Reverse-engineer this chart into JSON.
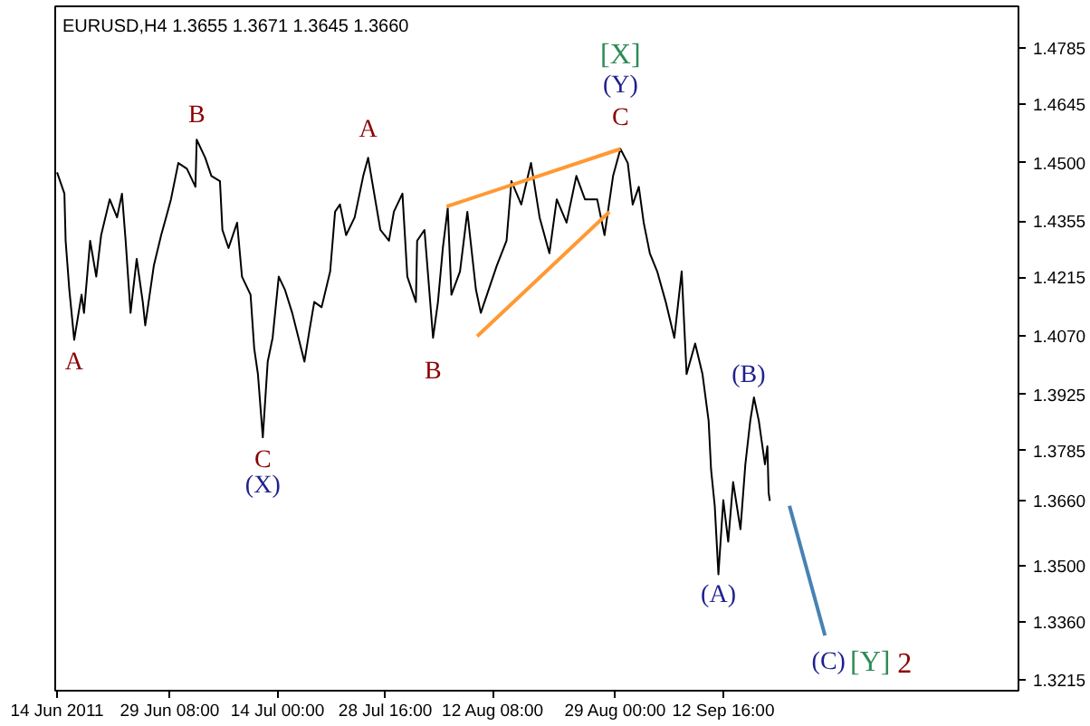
{
  "chart_data": {
    "type": "line",
    "title": "EURUSD,H4 1.3655 1.3671 1.3645 1.3660",
    "xlim": [
      "2011-06-13T18:00",
      "2011-10-22T20:00"
    ],
    "ylim": [
      1.3189,
      1.4888
    ],
    "xticks": [
      {
        "value": "2011-06-14T00:00",
        "label": "14 Jun 2011"
      },
      {
        "value": "2011-06-29T08:00",
        "label": "29 Jun 08:00"
      },
      {
        "value": "2011-07-14T00:00",
        "label": "14 Jul 00:00"
      },
      {
        "value": "2011-07-28T16:00",
        "label": "28 Jul 16:00"
      },
      {
        "value": "2011-08-12T08:00",
        "label": "12 Aug 08:00"
      },
      {
        "value": "2011-08-29T00:00",
        "label": "29 Aug 00:00"
      },
      {
        "value": "2011-09-12T16:00",
        "label": "12 Sep 16:00"
      }
    ],
    "yticks": [
      1.3215,
      {
        "value": 1.336,
        "label": "1.3360"
      },
      {
        "value": 1.35,
        "label": "1.3500"
      },
      {
        "value": 1.366,
        "label": "1.3660"
      },
      1.3785,
      1.3925,
      {
        "value": 1.407,
        "label": "1.4070"
      },
      1.4215,
      1.4355,
      {
        "value": 1.45,
        "label": "1.4500"
      },
      1.4645,
      1.4785
    ],
    "grid": false,
    "marker": "none",
    "line_style": "solid",
    "series": [
      {
        "color": "#000000",
        "x": [
          "2011-06-14T00:00",
          "2011-06-15T00:00",
          "2011-06-15T04:00",
          "2011-06-15T16:00",
          "2011-06-16T08:00",
          "2011-06-17T08:00",
          "2011-06-17T16:00",
          "2011-06-18T12:00",
          "2011-06-19T08:00",
          "2011-06-20T00:00",
          "2011-06-21T04:00",
          "2011-06-22T04:00",
          "2011-06-22T20:00",
          "2011-06-23T08:00",
          "2011-06-24T00:00",
          "2011-06-24T20:00",
          "2011-06-25T16:00",
          "2011-06-26T00:00",
          "2011-06-27T04:00",
          "2011-06-28T04:00",
          "2011-06-28T20:00",
          "2011-06-29T12:00",
          "2011-06-30T12:00",
          "2011-07-01T16:00",
          "2011-07-02T20:00",
          "2011-07-03T00:00",
          "2011-07-04T04:00",
          "2011-07-05T00:00",
          "2011-07-06T04:00",
          "2011-07-06T12:00",
          "2011-07-07T08:00",
          "2011-07-08T12:00",
          "2011-07-09T04:00",
          "2011-07-10T08:00",
          "2011-07-10T20:00",
          "2011-07-11T08:00",
          "2011-07-12T00:00",
          "2011-07-12T16:00",
          "2011-07-13T08:00",
          "2011-07-14T04:00",
          "2011-07-15T00:00",
          "2011-07-16T00:00",
          "2011-07-17T16:00",
          "2011-07-18T08:00",
          "2011-07-19T00:00",
          "2011-07-20T00:00",
          "2011-07-21T04:00",
          "2011-07-21T20:00",
          "2011-07-22T12:00",
          "2011-07-23T08:00",
          "2011-07-24T12:00",
          "2011-07-25T16:00",
          "2011-07-26T08:00",
          "2011-07-27T00:00",
          "2011-07-28T00:00",
          "2011-07-29T04:00",
          "2011-07-29T20:00",
          "2011-07-31T00:00",
          "2011-07-31T16:00",
          "2011-08-01T20:00",
          "2011-08-02T00:00",
          "2011-08-03T00:00",
          "2011-08-04T04:00",
          "2011-08-04T20:00",
          "2011-08-05T12:00",
          "2011-08-06T04:00",
          "2011-08-06T16:00",
          "2011-08-07T20:00",
          "2011-08-08T20:00",
          "2011-08-10T00:00",
          "2011-08-10T16:00",
          "2011-08-12T20:00",
          "2011-08-14T04:00",
          "2011-08-14T20:00",
          "2011-08-16T04:00",
          "2011-08-17T12:00",
          "2011-08-18T16:00",
          "2011-08-20T00:00",
          "2011-08-21T00:00",
          "2011-08-22T08:00",
          "2011-08-23T16:00",
          "2011-08-24T20:00",
          "2011-08-26T12:00",
          "2011-08-27T12:00",
          "2011-08-28T16:00",
          "2011-08-29T16:00",
          "2011-08-30T16:00",
          "2011-08-31T08:00",
          "2011-09-01T04:00",
          "2011-09-01T20:00",
          "2011-09-02T16:00",
          "2011-09-03T16:00",
          "2011-09-04T20:00",
          "2011-09-06T00:00",
          "2011-09-07T00:00",
          "2011-09-07T16:00",
          "2011-09-08T20:00",
          "2011-09-09T20:00",
          "2011-09-10T16:00",
          "2011-09-11T00:00",
          "2011-09-11T12:00",
          "2011-09-12T00:00",
          "2011-09-12T16:00",
          "2011-09-13T08:00",
          "2011-09-14T00:00",
          "2011-09-15T00:00",
          "2011-09-15T16:00",
          "2011-09-16T08:00",
          "2011-09-16T20:00",
          "2011-09-17T12:00",
          "2011-09-18T08:00",
          "2011-09-18T16:00",
          "2011-09-18T20:00",
          "2011-09-19T00:00"
        ],
        "values": [
          1.4476,
          1.4423,
          1.4306,
          1.4185,
          1.406,
          1.4172,
          1.4127,
          1.4306,
          1.4217,
          1.432,
          1.4409,
          1.4364,
          1.4423,
          1.4306,
          1.4127,
          1.4261,
          1.4154,
          1.4096,
          1.4244,
          1.432,
          1.4364,
          1.4409,
          1.4499,
          1.4485,
          1.444,
          1.4557,
          1.4512,
          1.4467,
          1.4454,
          1.4333,
          1.4288,
          1.4351,
          1.4217,
          1.4172,
          1.4038,
          1.3975,
          1.3818,
          1.4006,
          1.4065,
          1.4217,
          1.4185,
          1.4127,
          1.4006,
          1.4082,
          1.4154,
          1.4141,
          1.423,
          1.4378,
          1.4396,
          1.432,
          1.4364,
          1.4467,
          1.4512,
          1.444,
          1.4333,
          1.4306,
          1.4378,
          1.4423,
          1.4217,
          1.4154,
          1.4306,
          1.4333,
          1.4065,
          1.4154,
          1.4288,
          1.4387,
          1.4172,
          1.423,
          1.4378,
          1.4185,
          1.4127,
          1.4244,
          1.4306,
          1.4454,
          1.4396,
          1.4499,
          1.4364,
          1.4275,
          1.4409,
          1.4351,
          1.4467,
          1.4409,
          1.4409,
          1.432,
          1.4467,
          1.4534,
          1.4499,
          1.4396,
          1.444,
          1.4351,
          1.4275,
          1.423,
          1.4154,
          1.4065,
          1.423,
          1.3975,
          1.4051,
          1.3975,
          1.3859,
          1.3738,
          1.3648,
          1.3478,
          1.3662,
          1.3559,
          1.3707,
          1.359,
          1.3751,
          1.3859,
          1.3917,
          1.3859,
          1.3751,
          1.3796,
          1.368,
          1.366
        ]
      },
      {
        "color": "#ff9933",
        "x": [
          "2011-08-06T00:00",
          "2011-08-29T16:00"
        ],
        "values": [
          1.4391,
          1.4534
        ]
      },
      {
        "color": "#ff9933",
        "x": [
          "2011-08-10T04:00",
          "2011-08-28T04:00"
        ],
        "values": [
          1.4069,
          1.4378
        ]
      },
      {
        "color": "#4682b4",
        "x": [
          "2011-09-21T16:00",
          "2011-09-26T12:00"
        ],
        "values": [
          1.3648,
          1.3326
        ]
      }
    ],
    "annotations": [
      {
        "text": "A",
        "x": "2011-06-16T08:00",
        "y": 1.406
      },
      {
        "text": "B",
        "x": "2011-07-03T00:00",
        "y": 1.4557
      },
      {
        "text": "C",
        "x": "2011-07-12T00:00",
        "y": 1.3818
      },
      {
        "text": "(X)",
        "x": "2011-07-12T00:00",
        "y": 1.3818
      },
      {
        "text": "A",
        "x": "2011-07-26T08:00",
        "y": 1.4512
      },
      {
        "text": "B",
        "x": "2011-08-04T04:00",
        "y": 1.4065
      },
      {
        "text": "C",
        "x": "2011-08-29T16:00",
        "y": 1.4534
      },
      {
        "text": "(Y)",
        "x": "2011-08-29T16:00",
        "y": 1.4534
      },
      {
        "text": "[X]",
        "x": "2011-08-29T16:00",
        "y": 1.4534
      },
      {
        "text": "(B)",
        "x": "2011-09-16T20:00",
        "y": 1.3917
      },
      {
        "text": "(A)",
        "x": "2011-09-12T00:00",
        "y": 1.3478
      },
      {
        "text": "(C)",
        "x": "2011-09-26T12:00",
        "y": 1.3326
      },
      {
        "text": "[Y]",
        "x": "2011-09-26T12:00",
        "y": 1.3326
      },
      {
        "text": "2",
        "x": "2011-09-26T12:00",
        "y": 1.3326
      }
    ]
  }
}
